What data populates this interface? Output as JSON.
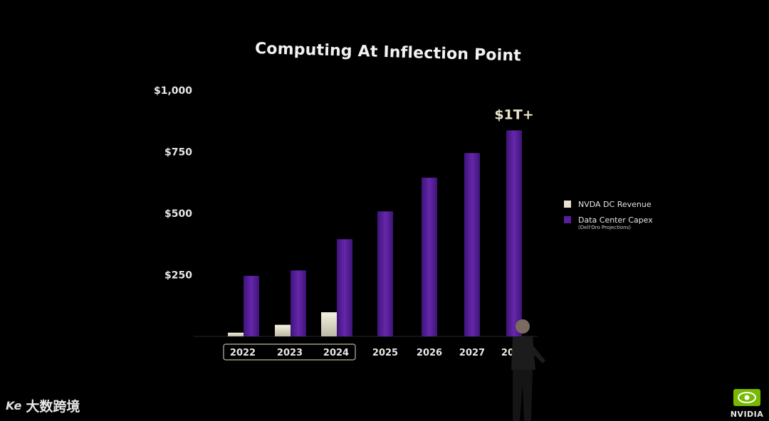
{
  "chart_data": {
    "type": "bar",
    "title": "Computing At Inflection Point",
    "categories": [
      "2022",
      "2023",
      "2024",
      "2025",
      "2026",
      "2027",
      "2028"
    ],
    "series": [
      {
        "name": "NVDA DC Revenue",
        "values": [
          15,
          47,
          98,
          null,
          null,
          null,
          null
        ],
        "color": "#e8e4cf"
      },
      {
        "name": "Data Center Capex",
        "note": "(Dell'Oro Projections)",
        "values": [
          246,
          268,
          395,
          508,
          645,
          745,
          837
        ],
        "color": "#5a1f9a"
      }
    ],
    "y_ticks": [
      "$1,000",
      "$750",
      "$500",
      "$250"
    ],
    "y_tick_values": [
      1000,
      750,
      500,
      250
    ],
    "ylim": [
      0,
      1000
    ],
    "annotation": "$1T+",
    "highlighted_categories": [
      "2022",
      "2023",
      "2024"
    ],
    "grid": false,
    "legend_position": "right"
  },
  "legend_note": "(Dell'Oro Projections)",
  "watermark": {
    "logo": "Ke",
    "text": "大数跨境"
  },
  "brand": {
    "name": "NVIDIA",
    "color": "#76b900"
  }
}
